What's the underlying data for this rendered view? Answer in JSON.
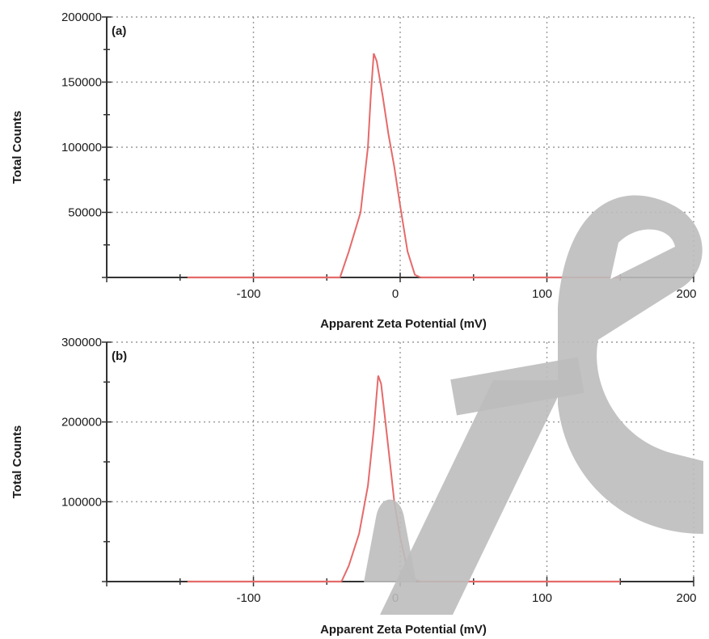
{
  "chart_data": [
    {
      "type": "line",
      "panel_label": "(a)",
      "xlabel": "Apparent Zeta Potential (mV)",
      "ylabel": "Total Counts",
      "xlim": [
        -200,
        200
      ],
      "ylim": [
        0,
        200000
      ],
      "x_ticks": [
        -100,
        0,
        100,
        200
      ],
      "y_ticks": [
        50000,
        100000,
        150000,
        200000
      ],
      "grid": true,
      "series": [
        {
          "color": "#e56a6a",
          "x": [
            -145,
            -41,
            -35,
            -27,
            -22,
            -20,
            -18,
            -16,
            -12,
            -8,
            -4,
            0,
            5,
            10,
            14,
            150
          ],
          "y": [
            0,
            0,
            20000,
            50000,
            100000,
            140000,
            172000,
            166000,
            140000,
            110000,
            85000,
            55000,
            20000,
            2000,
            0,
            0
          ]
        }
      ]
    },
    {
      "type": "line",
      "panel_label": "(b)",
      "xlabel": "Apparent Zeta Potential (mV)",
      "ylabel": "Total Counts",
      "xlim": [
        -200,
        200
      ],
      "ylim": [
        0,
        300000
      ],
      "x_ticks": [
        -100,
        0,
        100,
        200
      ],
      "y_ticks": [
        100000,
        200000,
        300000
      ],
      "grid": true,
      "series": [
        {
          "color": "#e56a6a",
          "x": [
            -145,
            -40,
            -35,
            -28,
            -22,
            -18,
            -15,
            -13,
            -10,
            -7,
            -4,
            0,
            5,
            10,
            14,
            150
          ],
          "y": [
            0,
            0,
            20000,
            60000,
            120000,
            190000,
            258000,
            248000,
            200000,
            150000,
            100000,
            55000,
            15000,
            2000,
            0,
            0
          ]
        }
      ]
    }
  ],
  "watermark": {
    "color": "#bdbdbd"
  }
}
